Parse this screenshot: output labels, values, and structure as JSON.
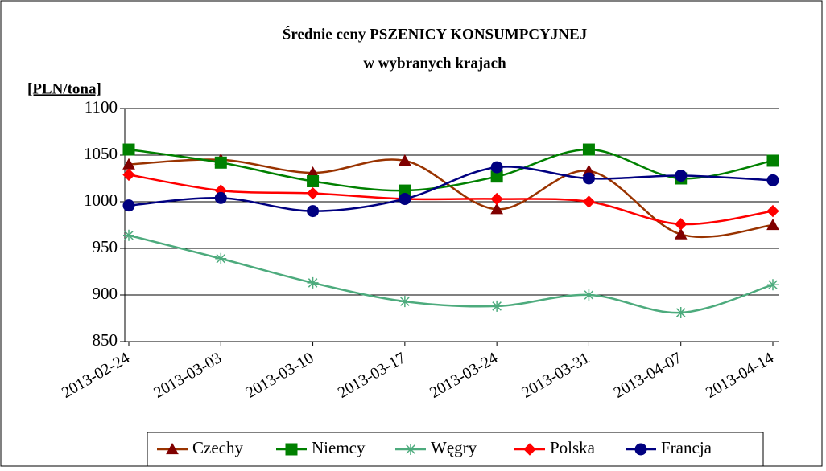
{
  "chart_data": {
    "type": "line",
    "title": "Średnie ceny PSZENICY KONSUMPCYJNEJ",
    "subtitle": "w wybranych krajach",
    "y_label": "[PLN/tona]",
    "x": [
      "2013-02-24",
      "2013-03-03",
      "2013-03-10",
      "2013-03-17",
      "2013-03-24",
      "2013-03-31",
      "2013-04-07",
      "2013-04-14"
    ],
    "ylim": [
      850,
      1100
    ],
    "yticks": [
      850,
      900,
      950,
      1000,
      1050,
      1100
    ],
    "grid": true,
    "legend": "bottom",
    "smooth": true,
    "series": [
      {
        "name": "Czechy",
        "color": "#993300",
        "marker_color": "#800000",
        "marker": "triangle",
        "values": [
          1040,
          1045,
          1031,
          1044,
          992,
          1033,
          965,
          975
        ]
      },
      {
        "name": "Niemcy",
        "color": "#008000",
        "marker_color": "#008000",
        "marker": "square",
        "values": [
          1056,
          1042,
          1022,
          1012,
          1027,
          1056,
          1025,
          1044
        ]
      },
      {
        "name": "Węgry",
        "color": "#4dab7d",
        "marker_color": "#4dab7d",
        "marker": "star",
        "values": [
          964,
          939,
          913,
          893,
          888,
          900,
          881,
          911
        ]
      },
      {
        "name": "Polska",
        "color": "#ff0000",
        "marker_color": "#ff0000",
        "marker": "diamond",
        "values": [
          1029,
          1012,
          1009,
          1003,
          1003,
          1000,
          976,
          990
        ]
      },
      {
        "name": "Francja",
        "color": "#000080",
        "marker_color": "#000080",
        "marker": "circle",
        "values": [
          996,
          1004,
          990,
          1003,
          1037,
          1025,
          1028,
          1023
        ]
      }
    ]
  }
}
